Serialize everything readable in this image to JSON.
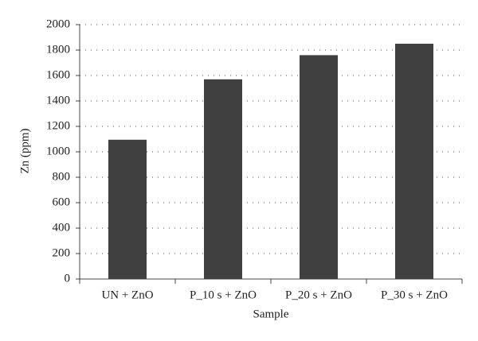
{
  "chart_data": {
    "type": "bar",
    "x_label": "Sample",
    "y_label": "Zn (ppm)",
    "categories": [
      "UN + ZnO",
      "P_10 s + ZnO",
      "P_20 s + ZnO",
      "P_30 s + ZnO"
    ],
    "values": [
      1095,
      1570,
      1760,
      1850
    ],
    "color": "#404040",
    "ylim": [
      0,
      2000
    ],
    "yticks": [
      0,
      200,
      400,
      600,
      800,
      1000,
      1200,
      1400,
      1600,
      1800,
      2000
    ],
    "grid": true
  }
}
